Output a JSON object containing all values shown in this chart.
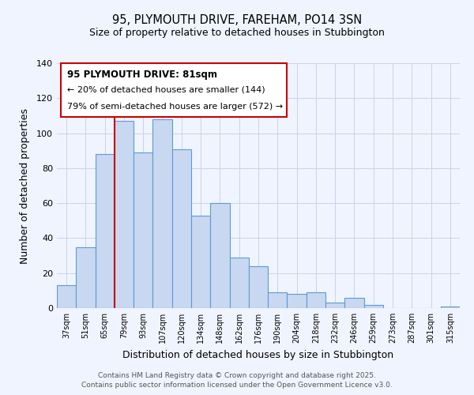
{
  "title_line1": "95, PLYMOUTH DRIVE, FAREHAM, PO14 3SN",
  "title_line2": "Size of property relative to detached houses in Stubbington",
  "xlabel": "Distribution of detached houses by size in Stubbington",
  "ylabel": "Number of detached properties",
  "categories": [
    "37sqm",
    "51sqm",
    "65sqm",
    "79sqm",
    "93sqm",
    "107sqm",
    "120sqm",
    "134sqm",
    "148sqm",
    "162sqm",
    "176sqm",
    "190sqm",
    "204sqm",
    "218sqm",
    "232sqm",
    "246sqm",
    "259sqm",
    "273sqm",
    "287sqm",
    "301sqm",
    "315sqm"
  ],
  "values": [
    13,
    35,
    88,
    107,
    89,
    108,
    91,
    53,
    60,
    29,
    24,
    9,
    8,
    9,
    3,
    6,
    2,
    0,
    0,
    0,
    1
  ],
  "bar_color": "#c8d8f0",
  "bar_edge_color": "#5b9bd5",
  "vline_color": "#cc0000",
  "ylim": [
    0,
    140
  ],
  "yticks": [
    0,
    20,
    40,
    60,
    80,
    100,
    120,
    140
  ],
  "annotation_title": "95 PLYMOUTH DRIVE: 81sqm",
  "annotation_line2": "← 20% of detached houses are smaller (144)",
  "annotation_line3": "79% of semi-detached houses are larger (572) →",
  "annotation_box_color": "#cc0000",
  "footer_line1": "Contains HM Land Registry data © Crown copyright and database right 2025.",
  "footer_line2": "Contains public sector information licensed under the Open Government Licence v3.0.",
  "background_color": "#f0f4ff",
  "grid_color": "#c8d4e8"
}
